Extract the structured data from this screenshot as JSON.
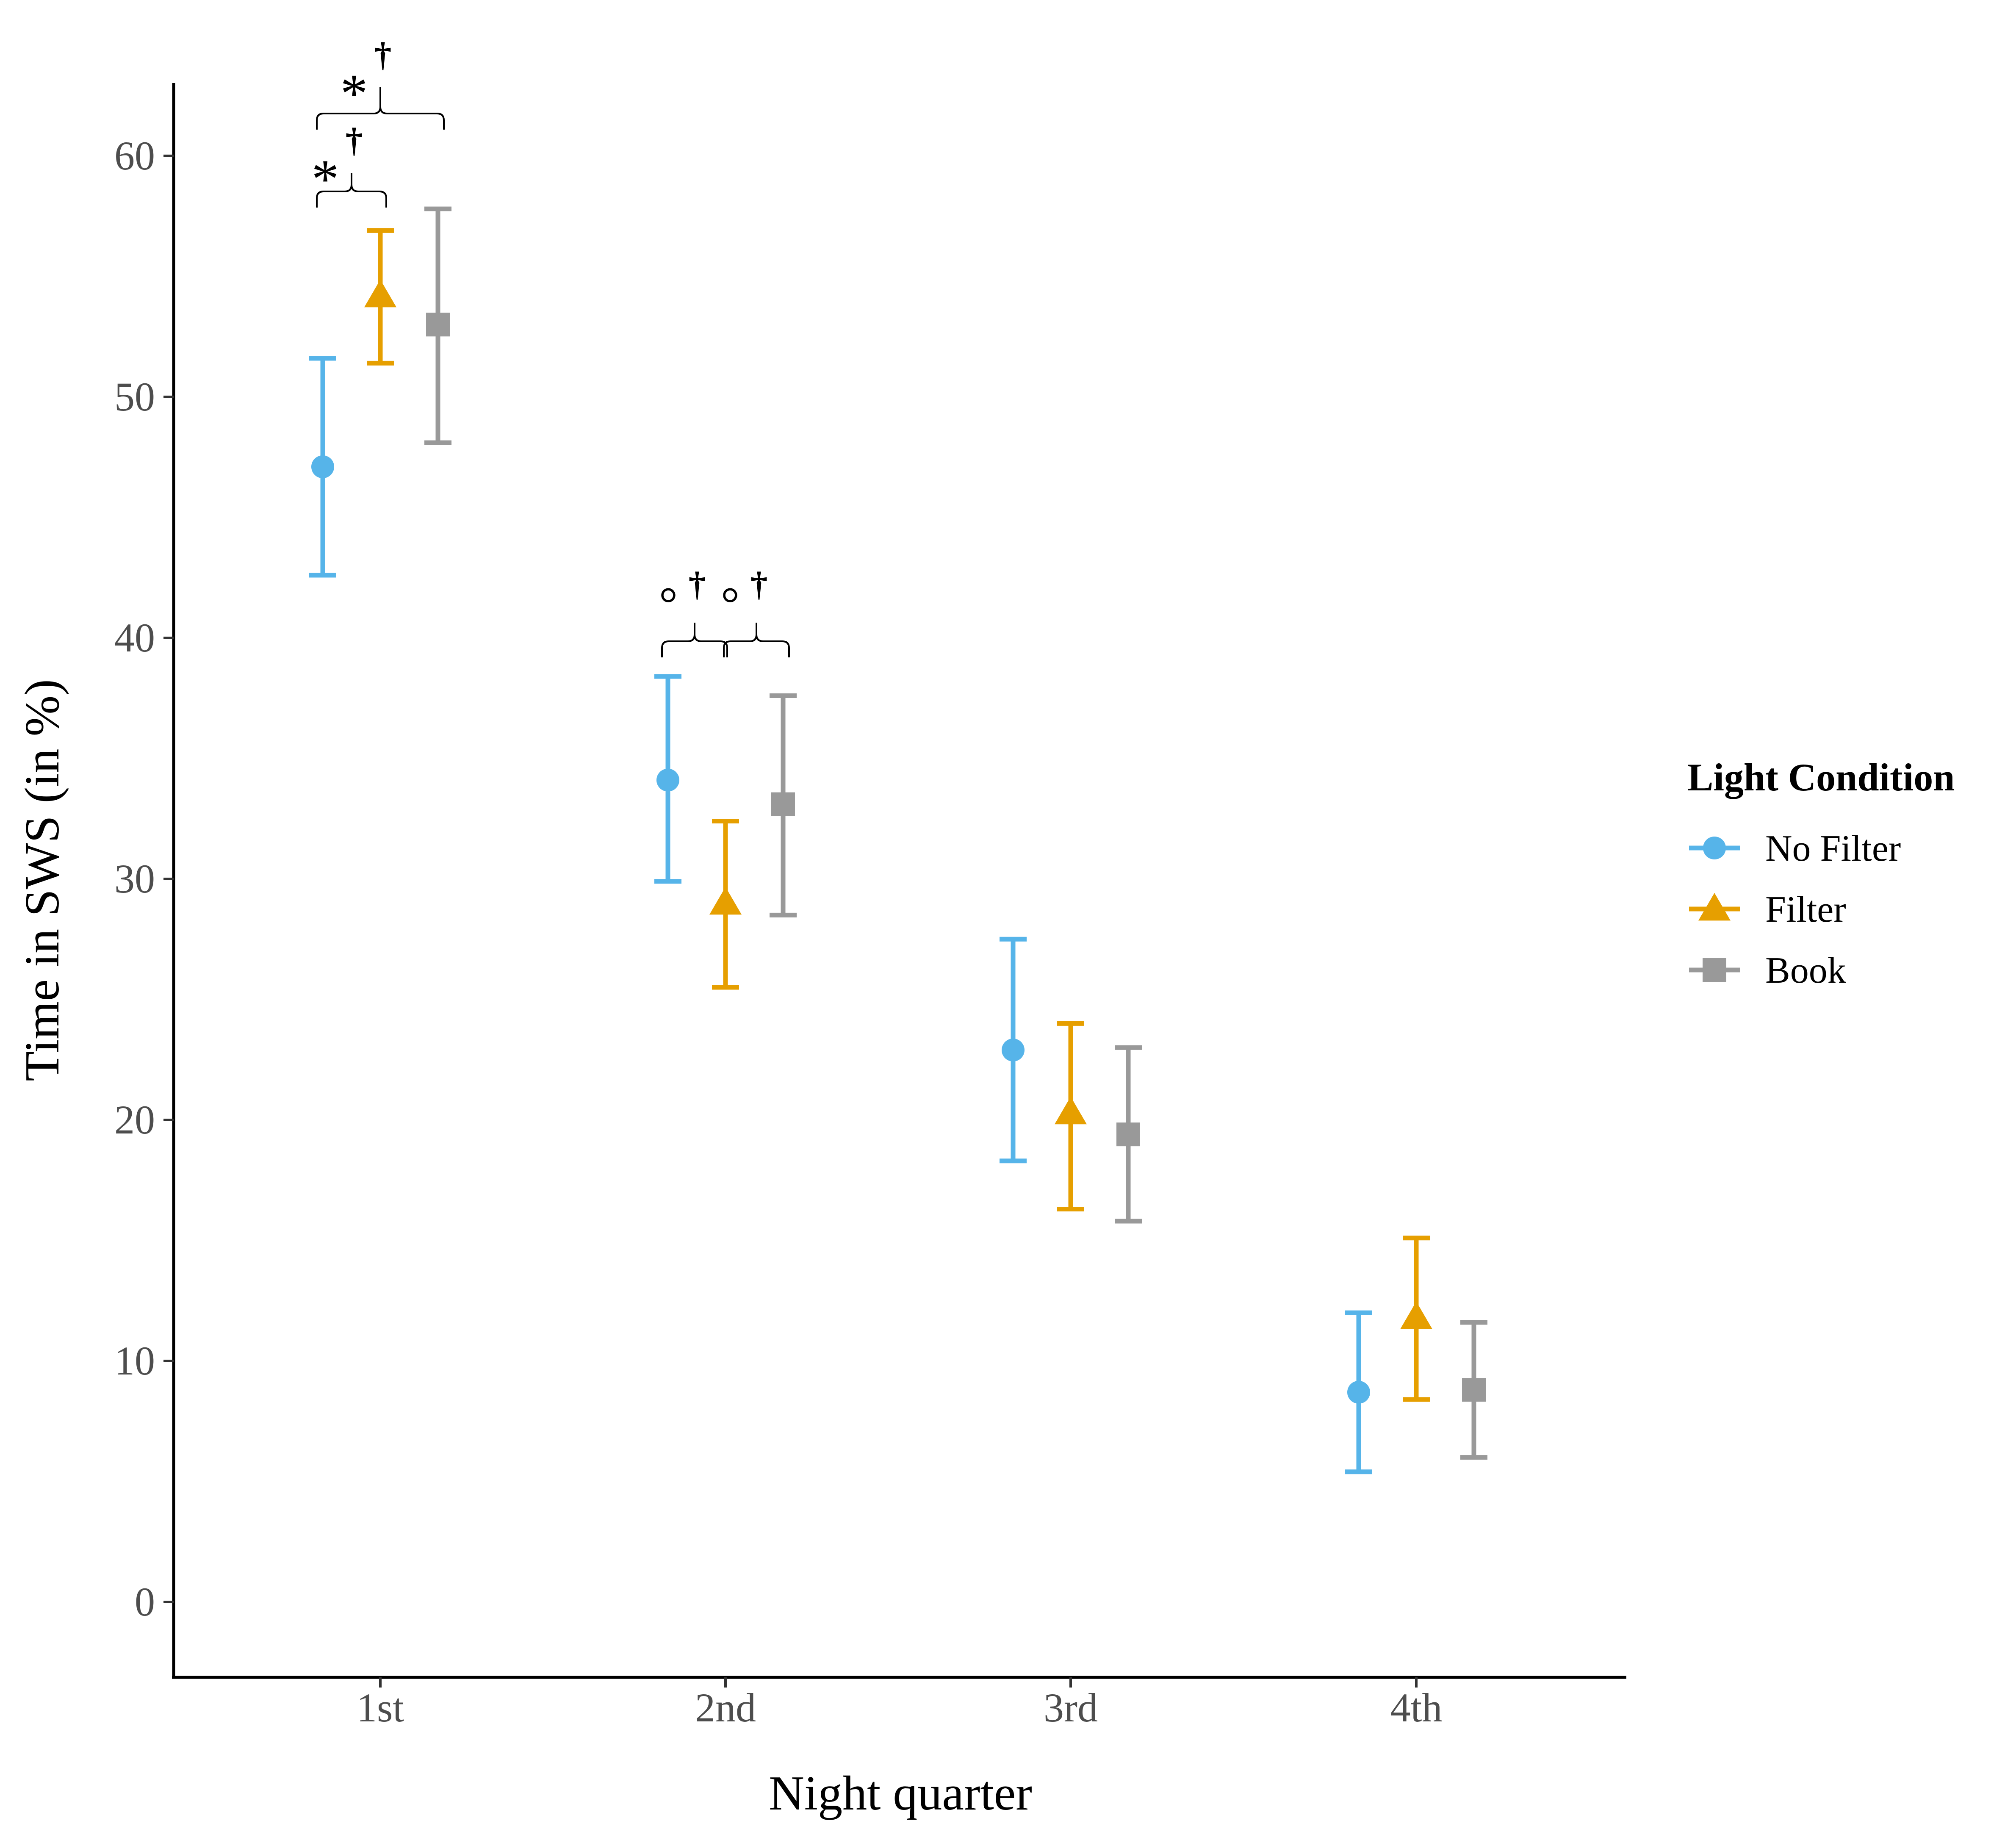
{
  "chart_data": {
    "type": "errorbar",
    "title": "",
    "xlabel": "Night quarter",
    "ylabel": "Time in SWS (in %)",
    "categories": [
      "1st",
      "2nd",
      "3rd",
      "4th"
    ],
    "ylim": [
      -3,
      63
    ],
    "yticks": [
      "0",
      "10",
      "20",
      "30",
      "40",
      "50",
      "60"
    ],
    "legend": {
      "title": "Light Condition",
      "placement": "right"
    },
    "series": [
      {
        "name": "No Filter",
        "marker": "circle",
        "color": "#56b4e9",
        "values": [
          47.1,
          34.1,
          22.9,
          8.7
        ],
        "lower": [
          42.6,
          29.9,
          18.3,
          5.4
        ],
        "upper": [
          51.6,
          38.4,
          27.5,
          12.0
        ]
      },
      {
        "name": "Filter",
        "marker": "triangle",
        "color": "#e69f00",
        "values": [
          54.2,
          29.0,
          20.3,
          11.8
        ],
        "lower": [
          51.4,
          25.5,
          16.3,
          8.4
        ],
        "upper": [
          56.9,
          32.4,
          24.0,
          15.1
        ]
      },
      {
        "name": "Book",
        "marker": "square",
        "color": "#999999",
        "values": [
          53.0,
          33.1,
          19.4,
          8.8
        ],
        "lower": [
          48.1,
          28.5,
          15.8,
          6.0
        ],
        "upper": [
          57.8,
          37.6,
          23.0,
          11.6
        ]
      }
    ],
    "annotations": [
      {
        "category": "1st",
        "between": [
          "No Filter",
          "Filter"
        ],
        "symbol": "*",
        "dagger": "†"
      },
      {
        "category": "1st",
        "between": [
          "No Filter",
          "Book"
        ],
        "symbol": "*",
        "dagger": "†"
      },
      {
        "category": "2nd",
        "between": [
          "No Filter",
          "Filter"
        ],
        "symbol": "°",
        "dagger": "†"
      },
      {
        "category": "2nd",
        "between": [
          "Filter",
          "Book"
        ],
        "symbol": "°",
        "dagger": "†"
      }
    ]
  }
}
